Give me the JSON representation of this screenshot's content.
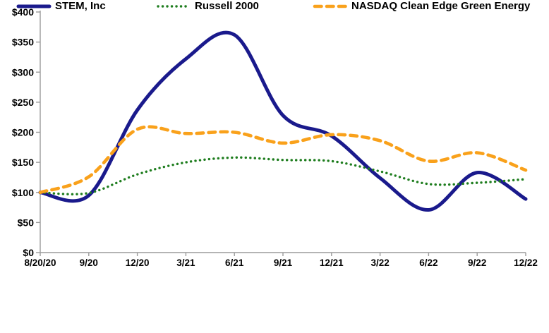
{
  "chart_data": {
    "type": "line",
    "title": "",
    "categories": [
      "8/20/20",
      "9/20",
      "12/20",
      "3/21",
      "6/21",
      "9/21",
      "12/21",
      "3/22",
      "6/22",
      "9/22",
      "12/22"
    ],
    "series": [
      {
        "name": "STEM, Inc",
        "color": "#1A1A8C",
        "style": "solid",
        "values": [
          100,
          95,
          237,
          322,
          362,
          228,
          194,
          124,
          71,
          133,
          89
        ]
      },
      {
        "name": "Russell 2000",
        "color": "#1E7D1E",
        "style": "dotted",
        "values": [
          100,
          99,
          130,
          150,
          158,
          154,
          152,
          135,
          114,
          116,
          122
        ]
      },
      {
        "name": "NASDAQ Clean Edge Green Energy",
        "color": "#F9A11B",
        "style": "dashed",
        "values": [
          100,
          126,
          205,
          198,
          200,
          182,
          196,
          186,
          152,
          166,
          137
        ]
      }
    ],
    "y_ticks": [
      0,
      50,
      100,
      150,
      200,
      250,
      300,
      350,
      400
    ],
    "y_tick_labels": [
      "$0",
      "$50",
      "$100",
      "$150",
      "$200",
      "$250",
      "$300",
      "$350",
      "$400"
    ],
    "ylim": [
      0,
      400
    ],
    "grid": false,
    "legend_position": "bottom",
    "axis_color": "#9B9B9B",
    "label_color": "#000000"
  }
}
